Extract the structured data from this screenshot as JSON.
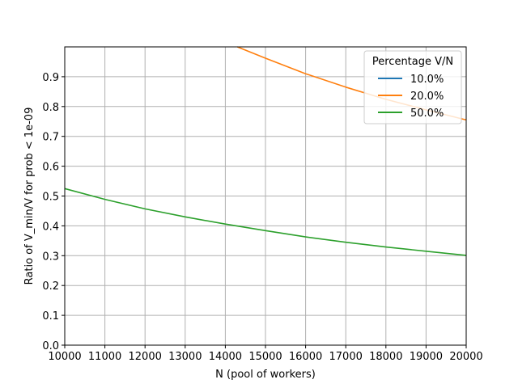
{
  "chart_data": {
    "type": "line",
    "xlabel": "N (pool of workers)",
    "ylabel": "Ratio of V_min/V for prob < 1e-09",
    "xlim": [
      10000,
      20000
    ],
    "ylim": [
      0,
      1.0
    ],
    "x_ticks": [
      10000,
      11000,
      12000,
      13000,
      14000,
      15000,
      16000,
      17000,
      18000,
      19000,
      20000
    ],
    "y_ticks": [
      0.0,
      0.1,
      0.2,
      0.3,
      0.4,
      0.5,
      0.6,
      0.7,
      0.8,
      0.9
    ],
    "x_tick_labels": [
      "10000",
      "11000",
      "12000",
      "13000",
      "14000",
      "15000",
      "16000",
      "17000",
      "18000",
      "19000",
      "20000"
    ],
    "y_tick_labels": [
      "0.0",
      "0.1",
      "0.2",
      "0.3",
      "0.4",
      "0.5",
      "0.6",
      "0.7",
      "0.8",
      "0.9"
    ],
    "grid": true,
    "legend": {
      "title": "Percentage V/N",
      "placement": "top-right"
    },
    "series": [
      {
        "name": "10.0%",
        "color": "#1f77b4",
        "x": [],
        "y": []
      },
      {
        "name": "20.0%",
        "color": "#ff7f0e",
        "x": [
          14300,
          15000,
          16000,
          17000,
          18000,
          19000,
          20000
        ],
        "y": [
          1.0,
          0.962,
          0.91,
          0.865,
          0.824,
          0.789,
          0.755
        ]
      },
      {
        "name": "50.0%",
        "color": "#2ca02c",
        "x": [
          10000,
          11000,
          12000,
          13000,
          14000,
          15000,
          16000,
          17000,
          18000,
          19000,
          20000
        ],
        "y": [
          0.525,
          0.489,
          0.457,
          0.43,
          0.406,
          0.384,
          0.363,
          0.345,
          0.329,
          0.315,
          0.301
        ]
      }
    ]
  }
}
